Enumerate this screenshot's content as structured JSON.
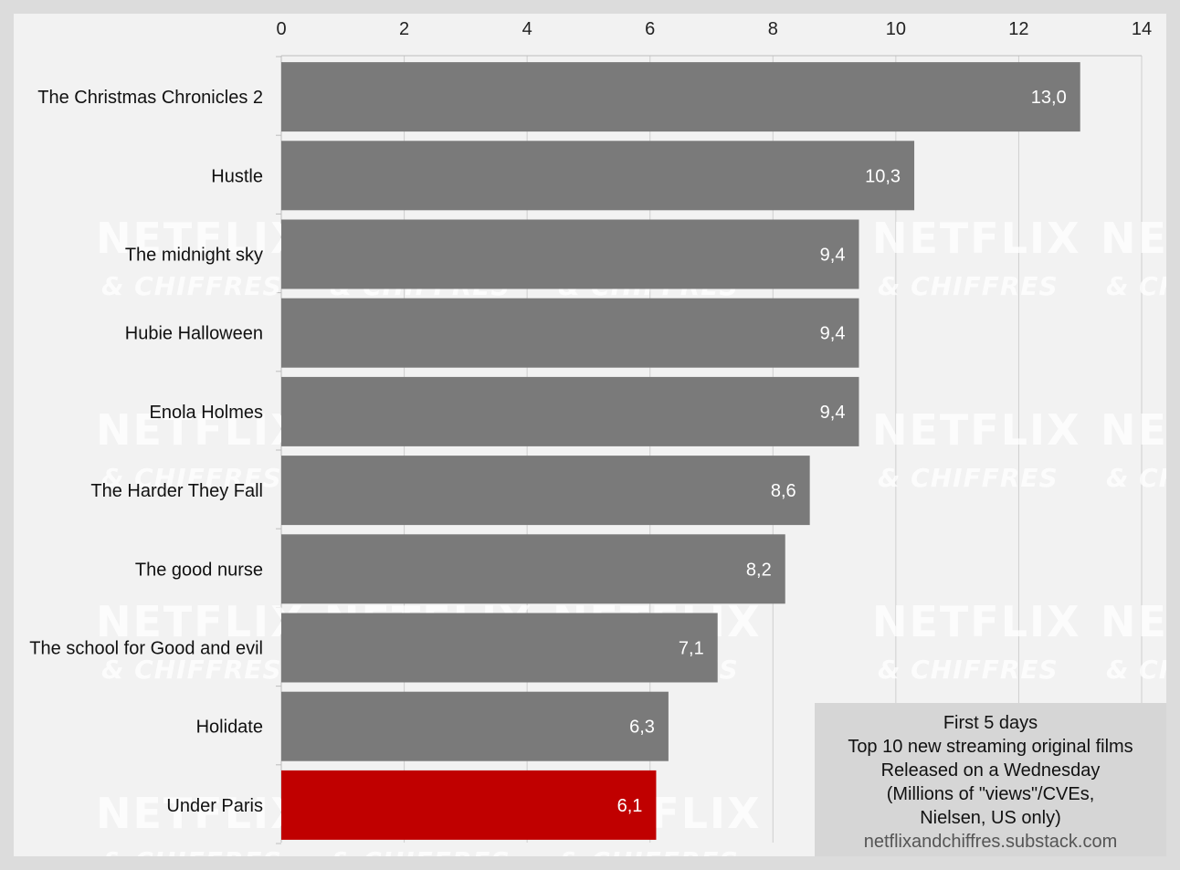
{
  "chart_data": {
    "type": "bar",
    "orientation": "horizontal",
    "categories": [
      "The Christmas Chronicles 2",
      "Hustle",
      "The midnight sky",
      "Hubie Halloween",
      "Enola Holmes",
      "The Harder They Fall",
      "The good nurse",
      "The school for Good and evil",
      "Holidate",
      "Under Paris"
    ],
    "values": [
      13.0,
      10.3,
      9.4,
      9.4,
      9.4,
      8.6,
      8.2,
      7.1,
      6.3,
      6.1
    ],
    "value_labels": [
      "13,0",
      "10,3",
      "9,4",
      "9,4",
      "9,4",
      "8,6",
      "8,2",
      "7,1",
      "6,3",
      "6,1"
    ],
    "xlim": [
      0,
      14
    ],
    "xticks": [
      0,
      2,
      4,
      6,
      8,
      10,
      12,
      14
    ],
    "axis_position": "top",
    "grid": true,
    "colors": {
      "default": "#7a7a7a",
      "highlight": "#c00000"
    },
    "highlight_index": 9
  },
  "watermark": {
    "line1": "NETFLIX",
    "line2": "& CHIFFRES"
  },
  "info_box": {
    "lines": [
      "First 5 days",
      "Top 10 new streaming original films",
      "Released on a Wednesday",
      "(Millions of \"views\"/CVEs,",
      "Nielsen, US only)"
    ],
    "source": "netflixandchiffres.substack.com"
  }
}
